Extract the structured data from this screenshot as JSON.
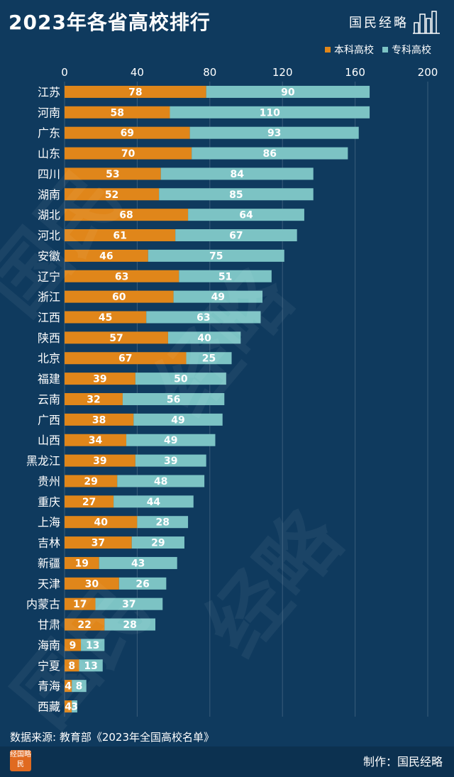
{
  "header": {
    "title": "2023年各省高校排行",
    "brand": "国民经略"
  },
  "legend": {
    "undergrad": "本科高校",
    "vocational": "专科高校"
  },
  "colors": {
    "background": "#0f3a5e",
    "undergrad": "#e0861a",
    "vocational": "#7cc3c4"
  },
  "chart_data": {
    "type": "bar",
    "orientation": "horizontal",
    "stacked": true,
    "title": "2023年各省高校排行",
    "xlim": [
      0,
      200
    ],
    "xticks": [
      0,
      40,
      80,
      120,
      160,
      200
    ],
    "grid": true,
    "legend_position": "top-right",
    "categories": [
      "江苏",
      "河南",
      "广东",
      "山东",
      "四川",
      "湖南",
      "湖北",
      "河北",
      "安徽",
      "辽宁",
      "浙江",
      "江西",
      "陕西",
      "北京",
      "福建",
      "云南",
      "广西",
      "山西",
      "黑龙江",
      "贵州",
      "重庆",
      "上海",
      "吉林",
      "新疆",
      "天津",
      "内蒙古",
      "甘肃",
      "海南",
      "宁夏",
      "青海",
      "西藏"
    ],
    "series": [
      {
        "name": "本科高校",
        "values": [
          78,
          58,
          69,
          70,
          53,
          52,
          68,
          61,
          46,
          63,
          60,
          45,
          57,
          67,
          39,
          32,
          38,
          34,
          39,
          29,
          27,
          40,
          37,
          19,
          30,
          17,
          22,
          9,
          8,
          4,
          4
        ]
      },
      {
        "name": "专科高校",
        "values": [
          90,
          110,
          93,
          86,
          84,
          85,
          64,
          67,
          75,
          51,
          49,
          63,
          40,
          25,
          50,
          56,
          49,
          49,
          39,
          48,
          44,
          28,
          29,
          43,
          26,
          37,
          28,
          13,
          13,
          8,
          3
        ]
      }
    ]
  },
  "footer": {
    "source": "数据来源: 教育部《2023年全国高校名单》",
    "credit": "制作：国民经略",
    "logo_text": "经国略民"
  }
}
